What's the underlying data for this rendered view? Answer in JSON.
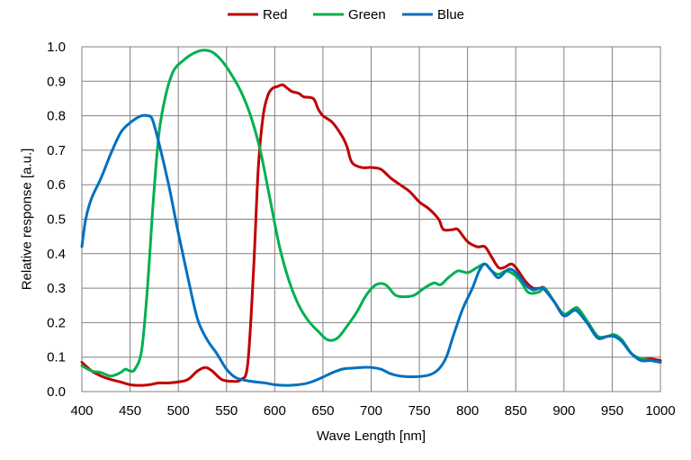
{
  "chart_data": {
    "type": "line",
    "xlabel": "Wave Length [nm]",
    "ylabel": "Relative response [a.u.]",
    "xlim": [
      400,
      1000
    ],
    "ylim": [
      0,
      1
    ],
    "grid": true,
    "legend_position": "top-center",
    "x_ticks": [
      "400",
      "450",
      "500",
      "550",
      "600",
      "650",
      "700",
      "750",
      "800",
      "850",
      "900",
      "950",
      "1000"
    ],
    "y_ticks": [
      "0.0",
      "0.1",
      "0.2",
      "0.3",
      "0.4",
      "0.5",
      "0.6",
      "0.7",
      "0.8",
      "0.9",
      "1.0"
    ],
    "series": [
      {
        "name": "Red",
        "color": "#c00000",
        "points": [
          [
            400,
            0.085
          ],
          [
            410,
            0.06
          ],
          [
            420,
            0.045
          ],
          [
            430,
            0.035
          ],
          [
            440,
            0.028
          ],
          [
            450,
            0.02
          ],
          [
            460,
            0.018
          ],
          [
            470,
            0.02
          ],
          [
            480,
            0.025
          ],
          [
            490,
            0.025
          ],
          [
            500,
            0.028
          ],
          [
            510,
            0.035
          ],
          [
            520,
            0.06
          ],
          [
            528,
            0.07
          ],
          [
            535,
            0.06
          ],
          [
            545,
            0.035
          ],
          [
            555,
            0.03
          ],
          [
            565,
            0.035
          ],
          [
            572,
            0.08
          ],
          [
            578,
            0.35
          ],
          [
            583,
            0.65
          ],
          [
            588,
            0.8
          ],
          [
            593,
            0.86
          ],
          [
            598,
            0.88
          ],
          [
            603,
            0.885
          ],
          [
            608,
            0.89
          ],
          [
            613,
            0.88
          ],
          [
            618,
            0.87
          ],
          [
            625,
            0.865
          ],
          [
            630,
            0.855
          ],
          [
            640,
            0.85
          ],
          [
            645,
            0.82
          ],
          [
            650,
            0.8
          ],
          [
            660,
            0.78
          ],
          [
            670,
            0.74
          ],
          [
            675,
            0.71
          ],
          [
            680,
            0.665
          ],
          [
            690,
            0.65
          ],
          [
            700,
            0.65
          ],
          [
            710,
            0.645
          ],
          [
            720,
            0.62
          ],
          [
            730,
            0.6
          ],
          [
            740,
            0.58
          ],
          [
            750,
            0.55
          ],
          [
            760,
            0.53
          ],
          [
            770,
            0.5
          ],
          [
            775,
            0.47
          ],
          [
            785,
            0.47
          ],
          [
            790,
            0.47
          ],
          [
            800,
            0.435
          ],
          [
            810,
            0.42
          ],
          [
            818,
            0.42
          ],
          [
            825,
            0.39
          ],
          [
            832,
            0.36
          ],
          [
            838,
            0.36
          ],
          [
            845,
            0.37
          ],
          [
            850,
            0.36
          ],
          [
            860,
            0.32
          ],
          [
            868,
            0.3
          ],
          [
            875,
            0.3
          ],
          [
            880,
            0.3
          ],
          [
            890,
            0.26
          ],
          [
            900,
            0.22
          ],
          [
            910,
            0.24
          ],
          [
            915,
            0.24
          ],
          [
            925,
            0.2
          ],
          [
            935,
            0.16
          ],
          [
            945,
            0.16
          ],
          [
            952,
            0.165
          ],
          [
            960,
            0.15
          ],
          [
            970,
            0.11
          ],
          [
            980,
            0.095
          ],
          [
            990,
            0.095
          ],
          [
            1000,
            0.09
          ]
        ]
      },
      {
        "name": "Green",
        "color": "#00b050",
        "points": [
          [
            400,
            0.075
          ],
          [
            410,
            0.06
          ],
          [
            420,
            0.055
          ],
          [
            430,
            0.045
          ],
          [
            440,
            0.055
          ],
          [
            445,
            0.065
          ],
          [
            450,
            0.06
          ],
          [
            455,
            0.065
          ],
          [
            462,
            0.12
          ],
          [
            468,
            0.3
          ],
          [
            474,
            0.55
          ],
          [
            480,
            0.75
          ],
          [
            487,
            0.86
          ],
          [
            495,
            0.93
          ],
          [
            505,
            0.96
          ],
          [
            515,
            0.98
          ],
          [
            525,
            0.99
          ],
          [
            535,
            0.985
          ],
          [
            545,
            0.96
          ],
          [
            555,
            0.92
          ],
          [
            565,
            0.87
          ],
          [
            575,
            0.8
          ],
          [
            585,
            0.7
          ],
          [
            595,
            0.56
          ],
          [
            605,
            0.42
          ],
          [
            615,
            0.32
          ],
          [
            625,
            0.25
          ],
          [
            635,
            0.205
          ],
          [
            645,
            0.175
          ],
          [
            655,
            0.15
          ],
          [
            665,
            0.155
          ],
          [
            675,
            0.19
          ],
          [
            685,
            0.23
          ],
          [
            695,
            0.28
          ],
          [
            705,
            0.31
          ],
          [
            715,
            0.31
          ],
          [
            725,
            0.28
          ],
          [
            735,
            0.275
          ],
          [
            745,
            0.28
          ],
          [
            755,
            0.3
          ],
          [
            765,
            0.315
          ],
          [
            772,
            0.31
          ],
          [
            780,
            0.33
          ],
          [
            790,
            0.35
          ],
          [
            800,
            0.345
          ],
          [
            810,
            0.36
          ],
          [
            818,
            0.37
          ],
          [
            825,
            0.35
          ],
          [
            832,
            0.34
          ],
          [
            840,
            0.35
          ],
          [
            848,
            0.34
          ],
          [
            855,
            0.32
          ],
          [
            862,
            0.29
          ],
          [
            868,
            0.285
          ],
          [
            875,
            0.29
          ],
          [
            880,
            0.3
          ],
          [
            890,
            0.26
          ],
          [
            900,
            0.225
          ],
          [
            910,
            0.24
          ],
          [
            915,
            0.24
          ],
          [
            925,
            0.2
          ],
          [
            935,
            0.16
          ],
          [
            945,
            0.16
          ],
          [
            952,
            0.165
          ],
          [
            960,
            0.15
          ],
          [
            970,
            0.11
          ],
          [
            980,
            0.095
          ],
          [
            990,
            0.09
          ],
          [
            1000,
            0.085
          ]
        ]
      },
      {
        "name": "Blue",
        "color": "#0070c0",
        "points": [
          [
            400,
            0.42
          ],
          [
            404,
            0.5
          ],
          [
            410,
            0.56
          ],
          [
            420,
            0.62
          ],
          [
            430,
            0.69
          ],
          [
            440,
            0.75
          ],
          [
            448,
            0.775
          ],
          [
            455,
            0.79
          ],
          [
            462,
            0.8
          ],
          [
            468,
            0.8
          ],
          [
            473,
            0.79
          ],
          [
            480,
            0.72
          ],
          [
            490,
            0.6
          ],
          [
            500,
            0.46
          ],
          [
            510,
            0.33
          ],
          [
            520,
            0.21
          ],
          [
            530,
            0.15
          ],
          [
            540,
            0.11
          ],
          [
            550,
            0.065
          ],
          [
            560,
            0.04
          ],
          [
            575,
            0.03
          ],
          [
            590,
            0.025
          ],
          [
            600,
            0.02
          ],
          [
            615,
            0.018
          ],
          [
            630,
            0.022
          ],
          [
            640,
            0.03
          ],
          [
            650,
            0.042
          ],
          [
            660,
            0.055
          ],
          [
            670,
            0.065
          ],
          [
            680,
            0.068
          ],
          [
            690,
            0.07
          ],
          [
            700,
            0.07
          ],
          [
            710,
            0.065
          ],
          [
            720,
            0.052
          ],
          [
            730,
            0.045
          ],
          [
            745,
            0.043
          ],
          [
            760,
            0.048
          ],
          [
            770,
            0.065
          ],
          [
            778,
            0.1
          ],
          [
            785,
            0.16
          ],
          [
            795,
            0.24
          ],
          [
            805,
            0.3
          ],
          [
            812,
            0.35
          ],
          [
            818,
            0.37
          ],
          [
            825,
            0.35
          ],
          [
            832,
            0.33
          ],
          [
            840,
            0.35
          ],
          [
            845,
            0.355
          ],
          [
            852,
            0.34
          ],
          [
            860,
            0.31
          ],
          [
            868,
            0.295
          ],
          [
            875,
            0.3
          ],
          [
            880,
            0.295
          ],
          [
            890,
            0.26
          ],
          [
            900,
            0.22
          ],
          [
            910,
            0.235
          ],
          [
            915,
            0.23
          ],
          [
            925,
            0.195
          ],
          [
            935,
            0.155
          ],
          [
            945,
            0.16
          ],
          [
            952,
            0.16
          ],
          [
            960,
            0.145
          ],
          [
            970,
            0.11
          ],
          [
            980,
            0.09
          ],
          [
            990,
            0.09
          ],
          [
            1000,
            0.085
          ]
        ]
      }
    ]
  }
}
